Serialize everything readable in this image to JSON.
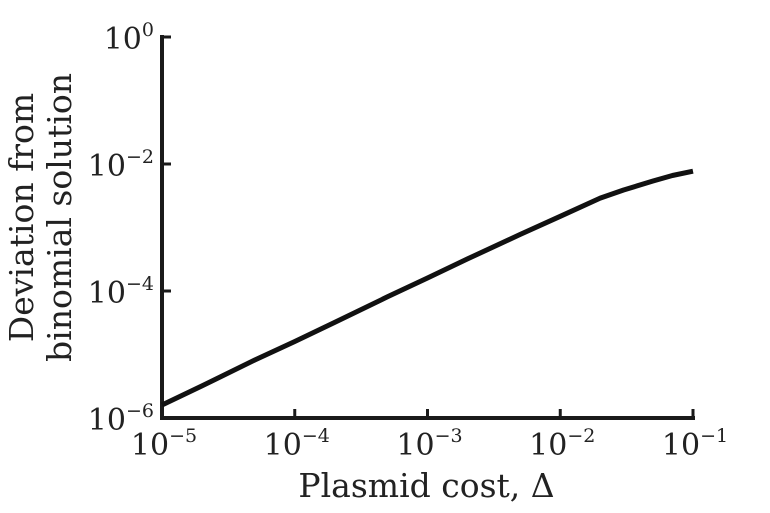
{
  "chart_data": {
    "type": "line",
    "title": "",
    "xlabel": "Plasmid cost, Δ",
    "ylabel": [
      "Deviation from",
      "binomial solution"
    ],
    "xscale": "log",
    "yscale": "log",
    "xlim": [
      1e-05,
      0.1
    ],
    "ylim": [
      1e-06,
      1
    ],
    "grid": false,
    "legend": "none",
    "x_ticks": [
      {
        "base": "10",
        "exp": "−5",
        "value": 1e-05
      },
      {
        "base": "10",
        "exp": "−4",
        "value": 0.0001
      },
      {
        "base": "10",
        "exp": "−3",
        "value": 0.001
      },
      {
        "base": "10",
        "exp": "−2",
        "value": 0.01
      },
      {
        "base": "10",
        "exp": "−1",
        "value": 0.1
      }
    ],
    "y_ticks": [
      {
        "base": "10",
        "exp": "−6",
        "value": 1e-06
      },
      {
        "base": "10",
        "exp": "−4",
        "value": 0.0001
      },
      {
        "base": "10",
        "exp": "−2",
        "value": 0.01
      },
      {
        "base": "10",
        "exp": "0",
        "value": 1
      }
    ],
    "series": [
      {
        "color": "#111111",
        "x": [
          1e-05,
          2e-05,
          5e-05,
          0.0001,
          0.0002,
          0.0005,
          0.001,
          0.002,
          0.005,
          0.01,
          0.02,
          0.03,
          0.05,
          0.07,
          0.1
        ],
        "y": [
          1.6e-06,
          3.2e-06,
          8.2e-06,
          1.6e-05,
          3.2e-05,
          8.1e-05,
          0.00016,
          0.00032,
          0.00078,
          0.0015,
          0.0029,
          0.0039,
          0.0054,
          0.0066,
          0.0077
        ]
      }
    ]
  }
}
